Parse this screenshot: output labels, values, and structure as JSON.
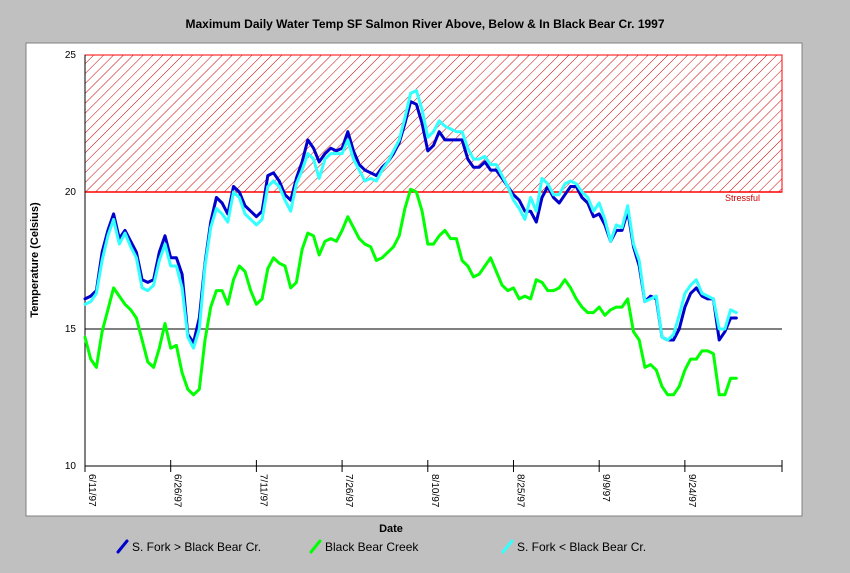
{
  "chart_data": {
    "type": "line",
    "title": "Maximum Daily Water Temp SF Salmon River Above, Below & In Black Bear Cr. 1997",
    "xlabel": "Date",
    "ylabel": "Temperature (Celsius)",
    "ylim": [
      10,
      25
    ],
    "yticks": [
      "10",
      "15",
      "20",
      "25"
    ],
    "xlim_days": [
      0,
      122
    ],
    "xticks": [
      "6/11/97",
      "6/26/97",
      "7/11/97",
      "7/26/97",
      "8/10/97",
      "8/25/97",
      "9/9/97",
      "9/24/97"
    ],
    "reference_line": 15,
    "stress_band": {
      "label": "Stressful",
      "from": 20,
      "to": 25,
      "color": "#ff0000"
    },
    "legend_position": "bottom",
    "series": [
      {
        "name": "S. Fork > Black Bear Cr.",
        "color": "#0000cc",
        "values": [
          16.1,
          16.2,
          16.4,
          17.8,
          18.6,
          19.2,
          18.3,
          18.6,
          18.2,
          17.8,
          16.8,
          16.7,
          16.8,
          17.8,
          18.4,
          17.6,
          17.6,
          17.0,
          14.8,
          14.5,
          15.4,
          17.4,
          18.9,
          19.8,
          19.6,
          19.2,
          20.2,
          20.0,
          19.5,
          19.3,
          19.1,
          19.3,
          20.6,
          20.7,
          20.4,
          19.9,
          19.7,
          20.5,
          21.1,
          21.9,
          21.6,
          21.1,
          21.4,
          21.6,
          21.5,
          21.6,
          22.2,
          21.5,
          21.0,
          20.8,
          20.7,
          20.6,
          20.9,
          21.1,
          21.4,
          21.8,
          22.5,
          23.3,
          23.2,
          22.5,
          21.5,
          21.7,
          22.2,
          21.9,
          21.9,
          21.9,
          21.9,
          21.2,
          20.9,
          20.9,
          21.1,
          20.8,
          20.8,
          20.5,
          20.2,
          19.9,
          19.7,
          19.3,
          19.3,
          18.9,
          19.8,
          20.2,
          19.8,
          19.6,
          19.9,
          20.2,
          20.2,
          19.8,
          19.6,
          19.1,
          19.2,
          18.8,
          18.2,
          18.6,
          18.6,
          19.3,
          18.0,
          17.3,
          16.0,
          16.2,
          16.1,
          14.7,
          14.6,
          14.6,
          15.0,
          15.8,
          16.3,
          16.5,
          16.2,
          16.1,
          16.1,
          14.6,
          14.9,
          15.4,
          15.4
        ]
      },
      {
        "name": "Black Bear Creek",
        "color": "#00ff00",
        "values": [
          14.7,
          13.9,
          13.6,
          14.9,
          15.7,
          16.5,
          16.2,
          15.9,
          15.7,
          15.4,
          14.6,
          13.8,
          13.6,
          14.3,
          15.2,
          14.3,
          14.4,
          13.4,
          12.8,
          12.6,
          12.8,
          14.6,
          15.8,
          16.4,
          16.4,
          15.9,
          16.8,
          17.3,
          17.1,
          16.4,
          15.9,
          16.1,
          17.2,
          17.6,
          17.4,
          17.3,
          16.5,
          16.7,
          17.9,
          18.5,
          18.4,
          17.7,
          18.2,
          18.3,
          18.2,
          18.6,
          19.1,
          18.7,
          18.3,
          18.1,
          18.0,
          17.5,
          17.6,
          17.8,
          18.0,
          18.4,
          19.4,
          20.1,
          20.0,
          19.3,
          18.1,
          18.1,
          18.4,
          18.6,
          18.3,
          18.3,
          17.5,
          17.3,
          16.9,
          17.0,
          17.3,
          17.6,
          17.1,
          16.6,
          16.4,
          16.5,
          16.1,
          16.2,
          16.1,
          16.8,
          16.7,
          16.4,
          16.4,
          16.5,
          16.8,
          16.5,
          16.1,
          15.8,
          15.6,
          15.6,
          15.8,
          15.5,
          15.7,
          15.8,
          15.8,
          16.1,
          14.9,
          14.6,
          13.6,
          13.7,
          13.5,
          12.9,
          12.6,
          12.6,
          12.9,
          13.5,
          13.9,
          13.9,
          14.2,
          14.2,
          14.1,
          12.6,
          12.6,
          13.2,
          13.2
        ]
      },
      {
        "name": "S. Fork < Black Bear Cr.",
        "color": "#33ffff",
        "values": [
          15.9,
          16.0,
          16.3,
          17.5,
          18.4,
          19.0,
          18.1,
          18.5,
          18.0,
          17.6,
          16.5,
          16.4,
          16.6,
          17.5,
          18.1,
          17.3,
          17.3,
          16.5,
          14.7,
          14.3,
          15.0,
          17.3,
          18.7,
          19.4,
          19.2,
          18.9,
          20.0,
          19.8,
          19.2,
          19.0,
          18.8,
          19.0,
          20.2,
          20.4,
          20.2,
          19.7,
          19.3,
          20.3,
          20.8,
          21.4,
          21.2,
          20.5,
          21.2,
          21.4,
          21.4,
          21.4,
          21.9,
          21.2,
          20.8,
          20.4,
          20.5,
          20.4,
          20.8,
          21.1,
          21.5,
          21.9,
          22.7,
          23.6,
          23.7,
          23.0,
          22.0,
          22.2,
          22.6,
          22.4,
          22.3,
          22.2,
          22.2,
          21.6,
          21.2,
          21.2,
          21.3,
          21.0,
          21.0,
          20.6,
          20.2,
          19.7,
          19.4,
          19.0,
          19.8,
          19.3,
          20.5,
          20.3,
          19.9,
          19.9,
          20.3,
          20.4,
          20.3,
          20.0,
          19.8,
          19.3,
          19.6,
          19.0,
          18.2,
          18.8,
          18.7,
          19.5,
          18.1,
          17.5,
          16.0,
          16.1,
          16.2,
          14.7,
          14.6,
          14.8,
          15.5,
          16.3,
          16.6,
          16.8,
          16.3,
          16.2,
          16.1,
          15.0,
          15.0,
          15.7,
          15.6
        ]
      }
    ]
  }
}
